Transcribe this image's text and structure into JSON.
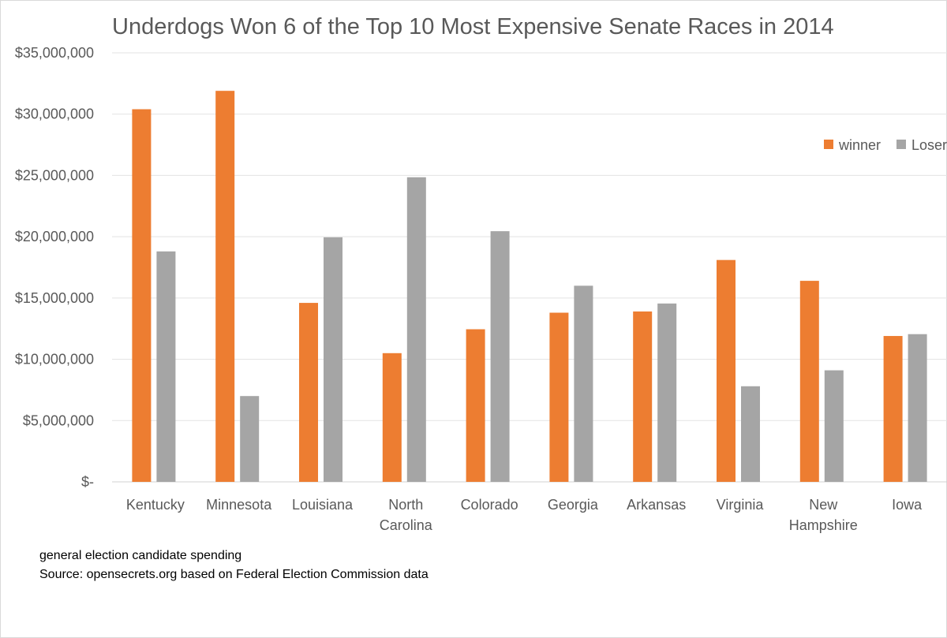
{
  "chart_data": {
    "type": "bar",
    "title": "Underdogs Won 6 of the Top 10 Most Expensive Senate Races in 2014",
    "categories": [
      [
        "Kentucky"
      ],
      [
        "Minnesota"
      ],
      [
        "Louisiana"
      ],
      [
        "North",
        "Carolina"
      ],
      [
        "Colorado"
      ],
      [
        "Georgia"
      ],
      [
        "Arkansas"
      ],
      [
        "Virginia"
      ],
      [
        "New",
        "Hampshire"
      ],
      [
        "Iowa"
      ]
    ],
    "series": [
      {
        "name": "winner",
        "color": "#ED7D31",
        "values": [
          30400000,
          31900000,
          14600000,
          10500000,
          12450000,
          13800000,
          13900000,
          18100000,
          16400000,
          11900000
        ]
      },
      {
        "name": "Loser",
        "color": "#A5A5A5",
        "values": [
          18800000,
          7000000,
          19950000,
          24850000,
          20450000,
          16000000,
          14550000,
          7800000,
          9100000,
          12050000
        ]
      }
    ],
    "ylim": [
      0,
      35000000
    ],
    "yticks": [
      0,
      5000000,
      10000000,
      15000000,
      20000000,
      25000000,
      30000000,
      35000000
    ],
    "ytick_labels": [
      "$-",
      "$5,000,000",
      "$10,000,000",
      "$15,000,000",
      "$20,000,000",
      "$25,000,000",
      "$30,000,000",
      "$35,000,000"
    ],
    "xlabel": "",
    "ylabel": "",
    "grid": true,
    "legend_position": "right"
  },
  "footnotes": {
    "line1": "general election candidate spending",
    "line2": "Source: opensecrets.org based on Federal Election Commission data"
  }
}
